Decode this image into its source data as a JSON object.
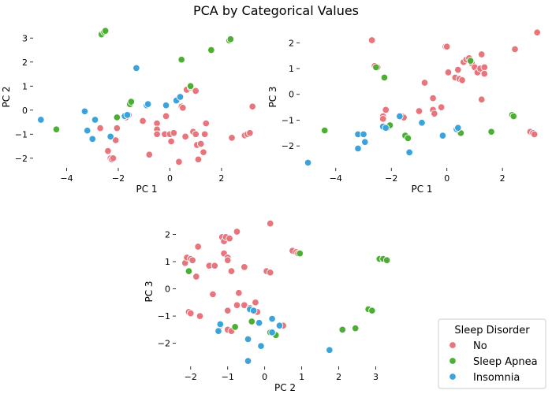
{
  "figure": {
    "title": "PCA by Categorical Values"
  },
  "legend": {
    "title": "Sleep Disorder",
    "placement": "lower-right",
    "entries": [
      {
        "name": "No",
        "color": "#e8747c"
      },
      {
        "name": "Sleep Apnea",
        "color": "#4dae34"
      },
      {
        "name": "Insomnia",
        "color": "#3ba3dc"
      }
    ]
  },
  "chart_data": [
    {
      "type": "scatter",
      "xlabel": "PC 1",
      "ylabel": "PC 2",
      "xlim": [
        -5.3,
        3.5
      ],
      "ylim": [
        -2.4,
        3.5
      ],
      "xticks": [
        -4,
        -2,
        0,
        2
      ],
      "yticks": [
        -2,
        -1,
        0,
        1,
        2,
        3
      ],
      "grid": false,
      "series": [
        {
          "name": "No",
          "color": "#e8747c",
          "points": [
            [
              -2.7,
              -0.75
            ],
            [
              -2.4,
              -1.7
            ],
            [
              -2.3,
              -2.0
            ],
            [
              -2.25,
              -2.05
            ],
            [
              -2.2,
              -2.0
            ],
            [
              -2.1,
              -1.25
            ],
            [
              -2.05,
              -0.75
            ],
            [
              -1.7,
              -0.3
            ],
            [
              -1.6,
              -0.2
            ],
            [
              -1.05,
              -0.45
            ],
            [
              -0.8,
              -1.85
            ],
            [
              -0.5,
              -0.55
            ],
            [
              -0.5,
              -0.8
            ],
            [
              -0.5,
              -1.0
            ],
            [
              -0.2,
              -1.0
            ],
            [
              -0.15,
              -0.25
            ],
            [
              0.0,
              -1.0
            ],
            [
              0.05,
              -1.3
            ],
            [
              0.15,
              -0.95
            ],
            [
              0.3,
              0.45
            ],
            [
              0.35,
              -2.15
            ],
            [
              0.45,
              0.15
            ],
            [
              0.5,
              0.1
            ],
            [
              0.6,
              -1.1
            ],
            [
              0.65,
              0.85
            ],
            [
              0.8,
              0.95
            ],
            [
              0.9,
              -0.9
            ],
            [
              1.0,
              -1.0
            ],
            [
              1.0,
              0.8
            ],
            [
              1.05,
              -1.45
            ],
            [
              1.1,
              -2.05
            ],
            [
              1.2,
              -1.4
            ],
            [
              1.3,
              -1.75
            ],
            [
              1.35,
              -1.0
            ],
            [
              1.4,
              -0.55
            ],
            [
              2.4,
              -1.15
            ],
            [
              2.9,
              -1.05
            ],
            [
              3.0,
              -1.0
            ],
            [
              3.1,
              -0.95
            ],
            [
              3.2,
              0.15
            ]
          ]
        },
        {
          "name": "Sleep Apnea",
          "color": "#4dae34",
          "points": [
            [
              -4.4,
              -0.8
            ],
            [
              -2.65,
              3.15
            ],
            [
              -2.55,
              3.25
            ],
            [
              -2.5,
              3.3
            ],
            [
              -2.05,
              -0.3
            ],
            [
              -1.55,
              0.25
            ],
            [
              -1.5,
              0.35
            ],
            [
              0.45,
              2.1
            ],
            [
              0.8,
              1.0
            ],
            [
              1.6,
              2.5
            ],
            [
              2.3,
              2.9
            ],
            [
              2.35,
              2.95
            ]
          ]
        },
        {
          "name": "Insomnia",
          "color": "#3ba3dc",
          "points": [
            [
              -5.0,
              -0.4
            ],
            [
              -3.3,
              -0.05
            ],
            [
              -3.2,
              -0.85
            ],
            [
              -3.0,
              -1.2
            ],
            [
              -2.9,
              -0.4
            ],
            [
              -2.3,
              -1.1
            ],
            [
              -1.75,
              -0.25
            ],
            [
              -1.65,
              -0.2
            ],
            [
              -1.3,
              1.75
            ],
            [
              -0.9,
              0.2
            ],
            [
              -0.85,
              0.25
            ],
            [
              -0.15,
              0.2
            ],
            [
              0.25,
              0.4
            ],
            [
              0.4,
              0.55
            ]
          ]
        }
      ]
    },
    {
      "type": "scatter",
      "xlabel": "PC 1",
      "ylabel": "PC 3",
      "xlim": [
        -5.3,
        3.5
      ],
      "ylim": [
        -2.85,
        2.65
      ],
      "xticks": [
        -4,
        -2,
        0,
        2
      ],
      "yticks": [
        -2,
        -1,
        0,
        1,
        2
      ],
      "grid": false,
      "series": [
        {
          "name": "No",
          "color": "#e8747c",
          "points": [
            [
              -2.7,
              2.1
            ],
            [
              -2.6,
              1.1
            ],
            [
              -2.5,
              1.05
            ],
            [
              -2.3,
              -0.85
            ],
            [
              -2.3,
              -0.95
            ],
            [
              -2.2,
              -0.6
            ],
            [
              -2.15,
              -1.3
            ],
            [
              -1.6,
              -0.85
            ],
            [
              -1.55,
              -0.9
            ],
            [
              -1.0,
              -0.65
            ],
            [
              -0.8,
              0.45
            ],
            [
              -0.5,
              -0.15
            ],
            [
              -0.5,
              -0.6
            ],
            [
              -0.45,
              -0.75
            ],
            [
              -0.2,
              -0.5
            ],
            [
              -0.05,
              1.85
            ],
            [
              0.0,
              1.85
            ],
            [
              0.05,
              0.85
            ],
            [
              0.3,
              0.65
            ],
            [
              0.4,
              0.95
            ],
            [
              0.45,
              0.6
            ],
            [
              0.55,
              0.55
            ],
            [
              0.6,
              1.25
            ],
            [
              0.7,
              1.35
            ],
            [
              0.8,
              1.4
            ],
            [
              0.9,
              1.2
            ],
            [
              1.0,
              1.05
            ],
            [
              1.1,
              0.85
            ],
            [
              1.2,
              1.0
            ],
            [
              1.25,
              1.55
            ],
            [
              1.25,
              -0.2
            ],
            [
              1.35,
              1.05
            ],
            [
              1.35,
              0.8
            ],
            [
              2.45,
              1.75
            ],
            [
              3.0,
              -1.45
            ],
            [
              3.1,
              -1.5
            ],
            [
              3.15,
              -1.55
            ],
            [
              3.25,
              2.4
            ]
          ]
        },
        {
          "name": "Sleep Apnea",
          "color": "#4dae34",
          "points": [
            [
              -4.4,
              -1.4
            ],
            [
              -2.55,
              1.05
            ],
            [
              -2.25,
              0.65
            ],
            [
              -2.05,
              -1.2
            ],
            [
              -1.5,
              -1.6
            ],
            [
              -1.4,
              -1.7
            ],
            [
              0.5,
              -1.5
            ],
            [
              0.85,
              1.3
            ],
            [
              1.6,
              -1.45
            ],
            [
              2.35,
              -0.8
            ],
            [
              2.4,
              -0.85
            ]
          ]
        },
        {
          "name": "Insomnia",
          "color": "#3ba3dc",
          "points": [
            [
              -5.0,
              -2.65
            ],
            [
              -3.2,
              -1.55
            ],
            [
              -3.2,
              -2.1
            ],
            [
              -3.0,
              -1.55
            ],
            [
              -2.95,
              -1.85
            ],
            [
              -2.3,
              -1.25
            ],
            [
              -2.2,
              -1.3
            ],
            [
              -1.7,
              -0.85
            ],
            [
              -1.35,
              -2.25
            ],
            [
              -0.9,
              -1.1
            ],
            [
              -0.15,
              -1.6
            ],
            [
              0.35,
              -1.35
            ],
            [
              0.4,
              -1.3
            ]
          ]
        }
      ]
    },
    {
      "type": "scatter",
      "xlabel": "PC 2",
      "ylabel": "PC 3",
      "xlim": [
        -2.4,
        3.5
      ],
      "ylim": [
        -2.85,
        2.65
      ],
      "xticks": [
        -2,
        -1,
        0,
        1,
        2,
        3
      ],
      "yticks": [
        -2,
        -1,
        0,
        1,
        2
      ],
      "grid": false,
      "series": [
        {
          "name": "No",
          "color": "#e8747c",
          "points": [
            [
              -2.15,
              0.95
            ],
            [
              -2.1,
              1.15
            ],
            [
              -2.05,
              -0.85
            ],
            [
              -2.0,
              1.1
            ],
            [
              -2.0,
              -0.9
            ],
            [
              -1.95,
              1.05
            ],
            [
              -1.85,
              0.45
            ],
            [
              -1.8,
              1.55
            ],
            [
              -1.75,
              -1.0
            ],
            [
              -1.5,
              0.85
            ],
            [
              -1.4,
              -0.2
            ],
            [
              -1.35,
              0.85
            ],
            [
              -1.2,
              -1.35
            ],
            [
              -1.15,
              1.9
            ],
            [
              -1.1,
              1.75
            ],
            [
              -1.1,
              1.3
            ],
            [
              -1.05,
              1.9
            ],
            [
              -1.0,
              1.15
            ],
            [
              -1.0,
              1.05
            ],
            [
              -1.0,
              -0.8
            ],
            [
              -1.0,
              -1.5
            ],
            [
              -0.95,
              1.85
            ],
            [
              -0.9,
              -1.55
            ],
            [
              -0.9,
              0.65
            ],
            [
              -0.75,
              2.1
            ],
            [
              -0.75,
              -0.6
            ],
            [
              -0.7,
              -0.15
            ],
            [
              -0.55,
              -0.6
            ],
            [
              -0.55,
              0.8
            ],
            [
              -0.4,
              -0.7
            ],
            [
              -0.25,
              -0.5
            ],
            [
              -0.2,
              -0.85
            ],
            [
              0.05,
              0.65
            ],
            [
              0.15,
              0.6
            ],
            [
              0.15,
              2.4
            ],
            [
              0.5,
              -1.35
            ],
            [
              0.75,
              1.4
            ],
            [
              0.85,
              1.35
            ],
            [
              0.9,
              1.3
            ]
          ]
        },
        {
          "name": "Sleep Apnea",
          "color": "#4dae34",
          "points": [
            [
              -2.05,
              0.65
            ],
            [
              -0.8,
              -1.4
            ],
            [
              -0.35,
              -1.2
            ],
            [
              0.15,
              -1.6
            ],
            [
              0.3,
              -1.7
            ],
            [
              0.95,
              1.3
            ],
            [
              2.1,
              -1.5
            ],
            [
              2.45,
              -1.45
            ],
            [
              2.8,
              -0.75
            ],
            [
              2.9,
              -0.8
            ],
            [
              3.1,
              1.1
            ],
            [
              3.2,
              1.1
            ],
            [
              3.3,
              1.05
            ]
          ]
        },
        {
          "name": "Insomnia",
          "color": "#3ba3dc",
          "points": [
            [
              -1.25,
              -1.55
            ],
            [
              -1.2,
              -1.3
            ],
            [
              -0.45,
              -1.85
            ],
            [
              -0.45,
              -2.65
            ],
            [
              -0.4,
              -0.75
            ],
            [
              -0.3,
              -0.8
            ],
            [
              -0.15,
              -1.25
            ],
            [
              -0.1,
              -2.1
            ],
            [
              0.2,
              -1.1
            ],
            [
              0.2,
              -1.6
            ],
            [
              0.4,
              -1.35
            ],
            [
              1.75,
              -2.25
            ]
          ]
        }
      ]
    }
  ]
}
